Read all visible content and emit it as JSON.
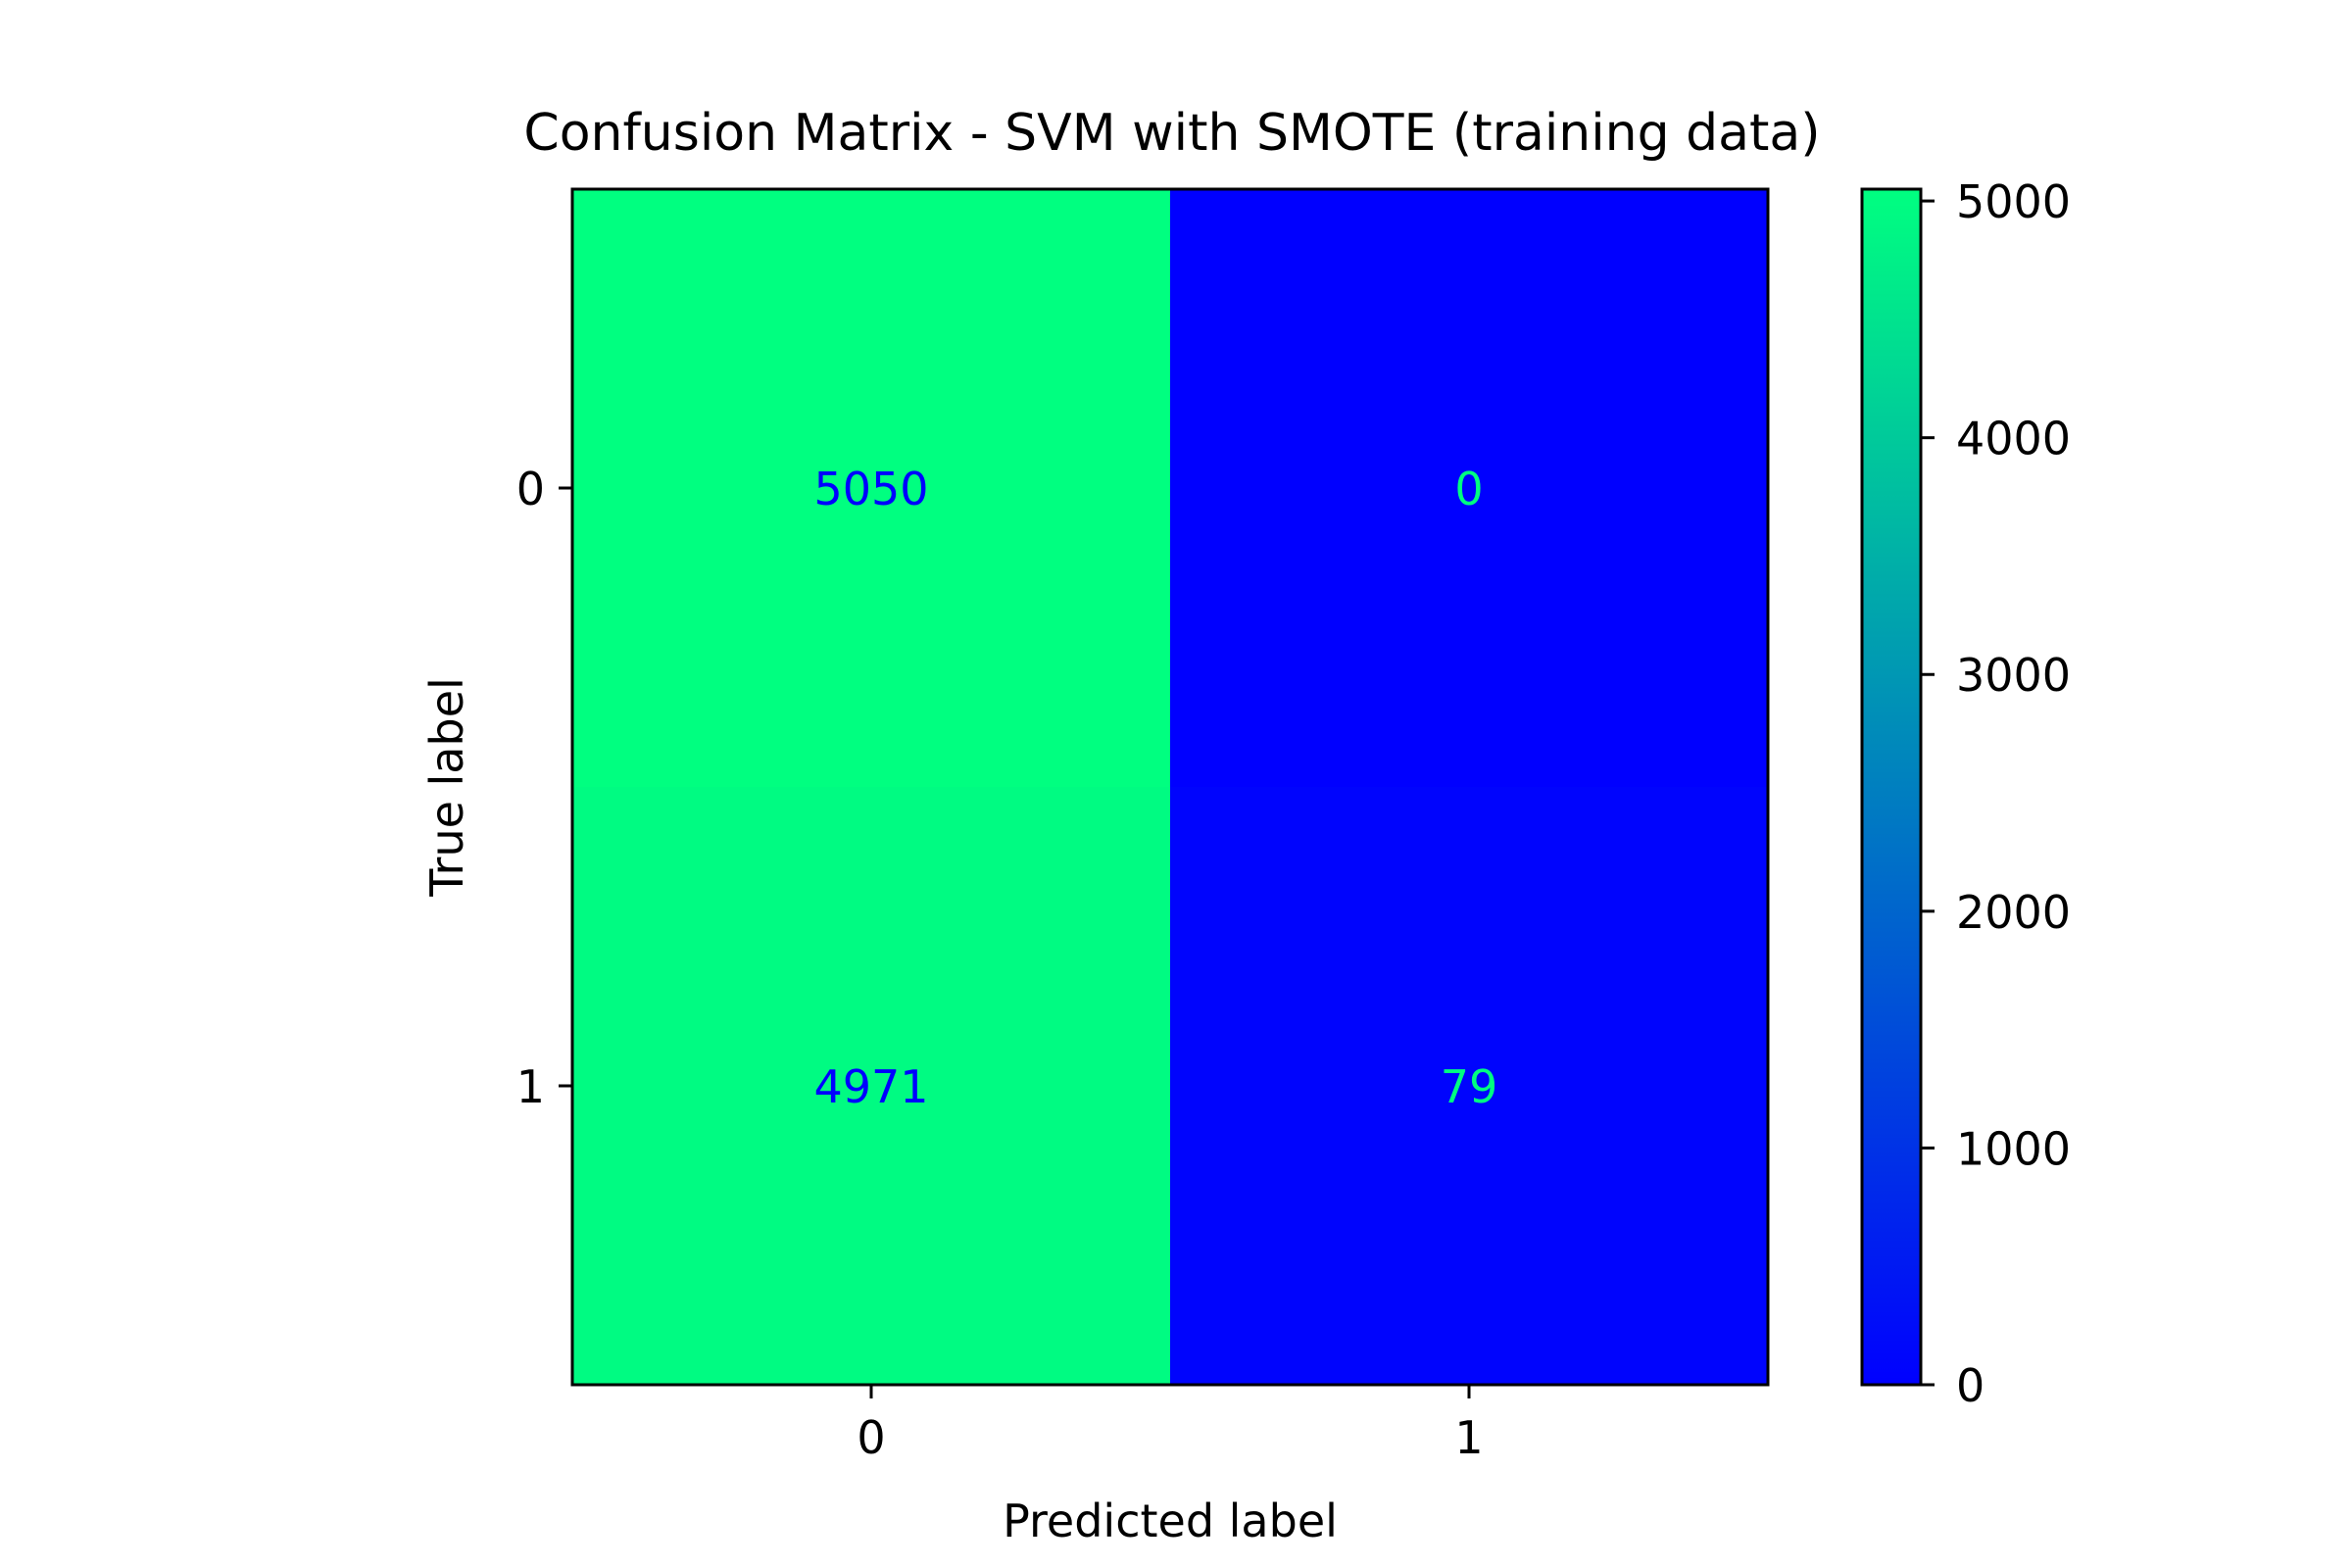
{
  "chart_data": {
    "type": "heatmap",
    "title": "Confusion Matrix - SVM with SMOTE (training data)",
    "xlabel": "Predicted label",
    "ylabel": "True label",
    "x_categories": [
      "0",
      "1"
    ],
    "y_categories": [
      "0",
      "1"
    ],
    "values": [
      [
        5050,
        0
      ],
      [
        4971,
        79
      ]
    ],
    "colormap": "winter",
    "colormap_colors": {
      "low": "#0000ff",
      "high": "#00ff80"
    },
    "colorbar": {
      "range": [
        0,
        5050
      ],
      "ticks": [
        0,
        1000,
        2000,
        3000,
        4000,
        5000
      ],
      "tick_labels": [
        "0",
        "1000",
        "2000",
        "3000",
        "4000",
        "5000"
      ],
      "position": "right"
    },
    "grid": false
  }
}
